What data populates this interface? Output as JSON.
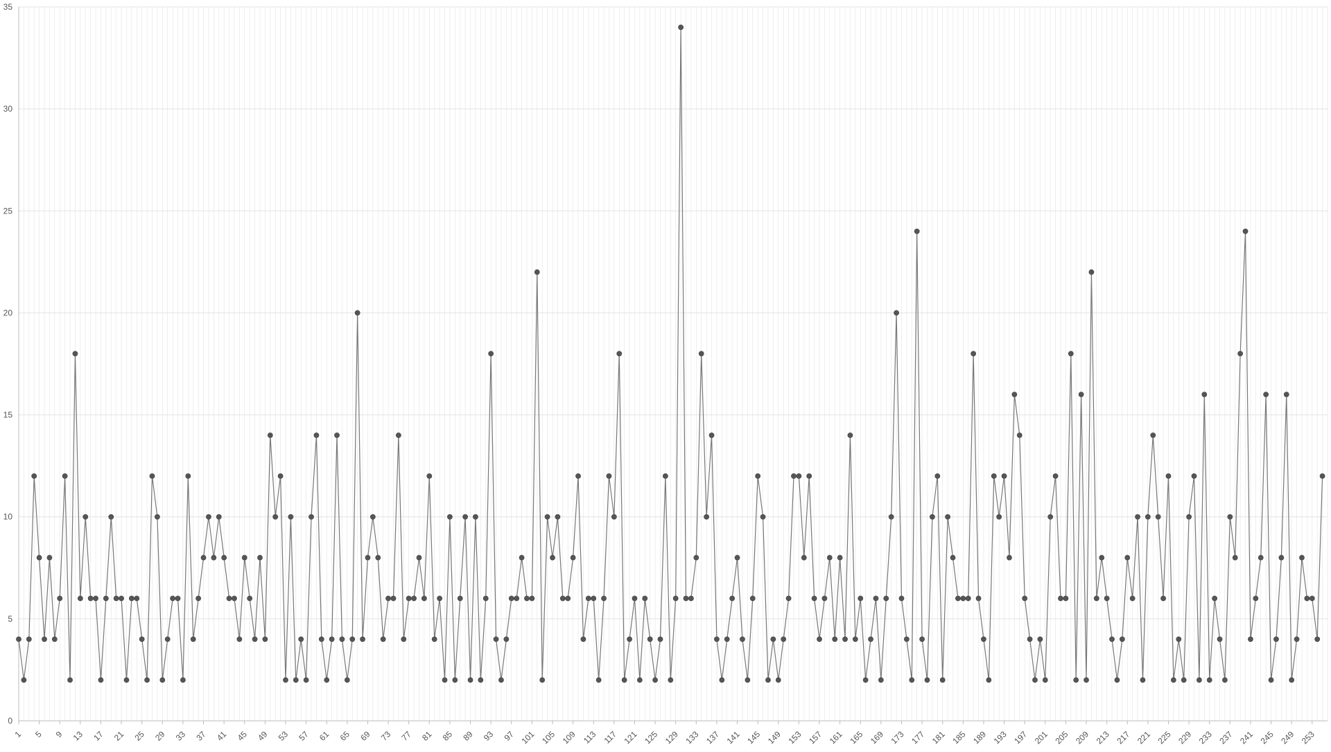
{
  "chart_data": {
    "type": "line",
    "title": "",
    "xlabel": "",
    "ylabel": "",
    "ylim": [
      0,
      35
    ],
    "y_ticks": [
      0,
      5,
      10,
      15,
      20,
      25,
      30,
      35
    ],
    "x_range": [
      1,
      256
    ],
    "x_tick_labels": [
      "1",
      "5",
      "9",
      "13",
      "17",
      "21",
      "25",
      "29",
      "33",
      "37",
      "41",
      "45",
      "49",
      "53",
      "57",
      "61",
      "65",
      "69",
      "73",
      "77",
      "81",
      "85",
      "89",
      "93",
      "97",
      "101",
      "105",
      "109",
      "113",
      "117",
      "121",
      "125",
      "129",
      "133",
      "137",
      "141",
      "145",
      "149",
      "153",
      "157",
      "161",
      "165",
      "169",
      "173",
      "177",
      "181",
      "185",
      "189",
      "193",
      "197",
      "201",
      "205",
      "209",
      "213",
      "217",
      "221",
      "225",
      "229",
      "233",
      "237",
      "241",
      "245",
      "249",
      "253"
    ],
    "grid": true,
    "legend": "none",
    "colors": {
      "line": "#777777",
      "marker": "#555555",
      "grid": "#e3e3e3",
      "axis": "#bbbbbb",
      "tick_text": "#555555"
    },
    "series": [
      {
        "values": [
          4,
          2,
          4,
          12,
          8,
          4,
          8,
          4,
          6,
          12,
          2,
          18,
          6,
          10,
          6,
          6,
          2,
          6,
          10,
          6,
          6,
          2,
          6,
          6,
          4,
          2,
          12,
          10,
          2,
          4,
          6,
          6,
          2,
          12,
          4,
          6,
          8,
          10,
          8,
          10,
          8,
          6,
          6,
          4,
          8,
          6,
          4,
          8,
          4,
          14,
          10,
          12,
          2,
          10,
          2,
          4,
          2,
          10,
          14,
          4,
          2,
          4,
          14,
          4,
          2,
          4,
          20,
          4,
          8,
          10,
          8,
          4,
          6,
          6,
          14,
          4,
          6,
          6,
          8,
          6,
          12,
          4,
          6,
          2,
          10,
          2,
          6,
          10,
          2,
          10,
          2,
          6,
          18,
          4,
          2,
          4,
          6,
          6,
          8,
          6,
          6,
          22,
          2,
          10,
          8,
          10,
          6,
          6,
          8,
          12,
          4,
          6,
          6,
          2,
          6,
          12,
          10,
          18,
          2,
          4,
          6,
          2,
          6,
          4,
          2,
          4,
          12,
          2,
          6,
          34,
          6,
          6,
          8,
          18,
          10,
          14,
          4,
          2,
          4,
          6,
          8,
          4,
          2,
          6,
          12,
          10,
          2,
          4,
          2,
          4,
          6,
          12,
          12,
          8,
          12,
          6,
          4,
          6,
          8,
          4,
          8,
          4,
          14,
          4,
          6,
          2,
          4,
          6,
          2,
          6,
          10,
          20,
          6,
          4,
          2,
          24,
          4,
          2,
          10,
          12,
          2,
          10,
          8,
          6,
          6,
          6,
          18,
          6,
          4,
          2,
          12,
          10,
          12,
          8,
          16,
          14,
          6,
          4,
          2,
          4,
          2,
          10,
          12,
          6,
          6,
          18,
          2,
          16,
          2,
          22,
          6,
          8,
          6,
          4,
          2,
          4,
          8,
          6,
          10,
          2,
          10,
          14,
          10,
          6,
          12,
          2,
          4,
          2,
          10,
          12,
          2,
          16,
          2,
          6,
          4,
          2,
          10,
          8,
          18,
          24,
          4,
          6,
          8,
          16,
          2,
          4,
          8,
          16,
          2,
          4,
          8,
          6,
          6,
          4,
          12
        ]
      }
    ]
  }
}
